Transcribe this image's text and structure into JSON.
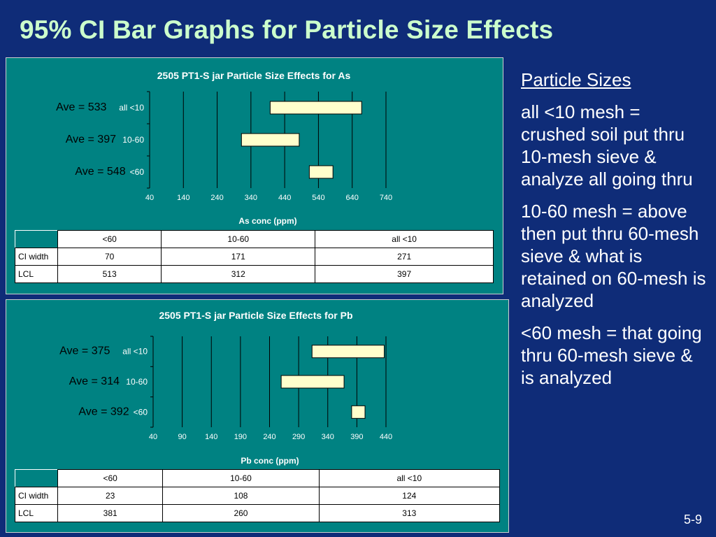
{
  "slide": {
    "title": "95% CI Bar Graphs for Particle Size Effects",
    "page_number": "5-9"
  },
  "side_text": {
    "heading": "Particle Sizes",
    "paragraphs": [
      "all <10 mesh = crushed soil put thru 10-mesh sieve & analyze all going thru",
      "10-60 mesh = above then put thru 60-mesh sieve & what is retained on 60-mesh is analyzed",
      "<60 mesh = that going thru 60-mesh sieve & is analyzed"
    ]
  },
  "colors": {
    "background": "#0f2c78",
    "title": "#ccffcc",
    "panel": "#008282",
    "bar_fill": "#ffffcc"
  },
  "chart_data": [
    {
      "type": "bar",
      "orientation": "horizontal-floating",
      "title": "2505 PT1-S jar Particle Size Effects for As",
      "xlabel": "As conc (ppm)",
      "xlim": [
        40,
        740
      ],
      "xticks": [
        "40",
        "140",
        "240",
        "340",
        "440",
        "540",
        "640",
        "740"
      ],
      "categories": [
        "all <10",
        "10-60",
        "<60"
      ],
      "ave_labels": [
        "Ave = 533",
        "Ave = 397",
        "Ave = 548"
      ],
      "lcl": [
        397,
        312,
        513
      ],
      "ci_width": [
        271,
        171,
        70
      ],
      "table": {
        "columns": [
          "<60",
          "10-60",
          "all <10"
        ],
        "rows": [
          {
            "label": "CI width",
            "values": [
              "70",
              "171",
              "271"
            ]
          },
          {
            "label": "LCL",
            "values": [
              "513",
              "312",
              "397"
            ]
          }
        ]
      }
    },
    {
      "type": "bar",
      "orientation": "horizontal-floating",
      "title": "2505 PT1-S jar Particle Size Effects for Pb",
      "xlabel": "Pb conc (ppm)",
      "xlim": [
        40,
        440
      ],
      "xticks": [
        "40",
        "90",
        "140",
        "190",
        "240",
        "290",
        "340",
        "390",
        "440"
      ],
      "categories": [
        "all <10",
        "10-60",
        "<60"
      ],
      "ave_labels": [
        "Ave = 375",
        "Ave = 314",
        "Ave = 392"
      ],
      "lcl": [
        313,
        260,
        381
      ],
      "ci_width": [
        124,
        108,
        23
      ],
      "table": {
        "columns": [
          "<60",
          "10-60",
          "all <10"
        ],
        "rows": [
          {
            "label": "CI width",
            "values": [
              "23",
              "108",
              "124"
            ]
          },
          {
            "label": "LCL",
            "values": [
              "381",
              "260",
              "313"
            ]
          }
        ]
      }
    }
  ]
}
